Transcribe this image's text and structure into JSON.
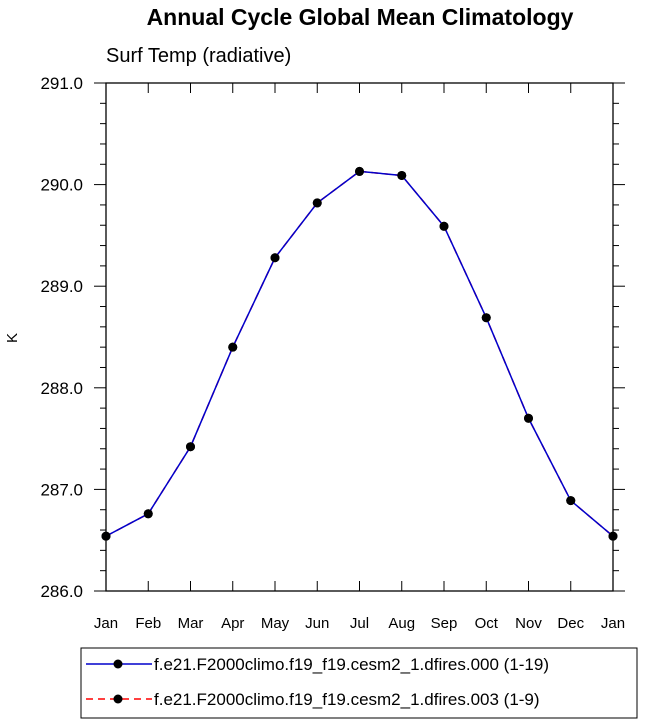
{
  "chart_data": {
    "type": "line",
    "title": "Annual Cycle Global Mean Climatology",
    "subtitle": "Surf Temp (radiative)",
    "ylabel": "K",
    "xlabel": "",
    "categories": [
      "Jan",
      "Feb",
      "Mar",
      "Apr",
      "May",
      "Jun",
      "Jul",
      "Aug",
      "Sep",
      "Oct",
      "Nov",
      "Dec",
      "Jan"
    ],
    "ylim": [
      286.0,
      291.0
    ],
    "yticks": [
      "286.0",
      "287.0",
      "288.0",
      "289.0",
      "290.0",
      "291.0"
    ],
    "grid": false,
    "legend_position": "bottom",
    "series": [
      {
        "name": "f.e21.F2000climo.f19_f19.cesm2_1.dfires.000 (1-19)",
        "color": "#0000cc",
        "line_style": "solid",
        "marker_color": "#000000",
        "values": [
          286.54,
          286.76,
          287.42,
          288.4,
          289.28,
          289.82,
          290.13,
          290.09,
          289.59,
          288.69,
          287.7,
          286.89,
          286.54
        ]
      },
      {
        "name": "f.e21.F2000climo.f19_f19.cesm2_1.dfires.003 (1-9)",
        "color": "#ff0000",
        "line_style": "dashed",
        "marker_color": "#000000",
        "values": [
          286.54,
          286.76,
          287.42,
          288.4,
          289.28,
          289.82,
          290.13,
          290.09,
          289.59,
          288.69,
          287.7,
          286.89,
          286.54
        ]
      }
    ]
  }
}
